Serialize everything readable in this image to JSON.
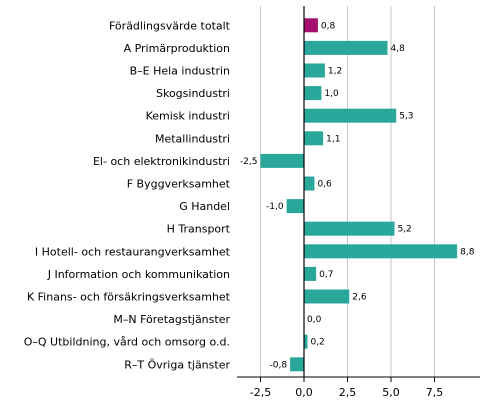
{
  "chart_data": {
    "type": "bar",
    "orientation": "horizontal",
    "title": "",
    "xlabel": "",
    "ylabel": "",
    "categories": [
      "Förädlingsvärde totalt",
      "A Primärproduktion",
      "B–E Hela industrin",
      "Skogsindustri",
      "Kemisk industri",
      "Metallindustri",
      "El- och elektronikindustri",
      "F Byggverksamhet",
      "G Handel",
      "H Transport",
      "I Hotell- och restaurangverksamhet",
      "J Information och kommunikation",
      "K Finans- och försäkringsverksamhet",
      "M–N Företagstjänster",
      "O–Q Utbildning, vård och omsorg o.d.",
      "R–T Övriga tjänster"
    ],
    "values": [
      0.8,
      4.8,
      1.2,
      1.0,
      5.3,
      1.1,
      -2.5,
      0.6,
      -1.0,
      5.2,
      8.8,
      0.7,
      2.6,
      0.0,
      0.2,
      -0.8
    ],
    "value_labels": [
      "0,8",
      "4,8",
      "1,2",
      "1,0",
      "5,3",
      "1,1",
      "-2,5",
      "0,6",
      "-1,0",
      "5,2",
      "8,8",
      "0,7",
      "2,6",
      "0,0",
      "0,2",
      "-0,8"
    ],
    "xlim": [
      -4.0,
      10.0
    ],
    "ticks": [
      -2.5,
      0.0,
      2.5,
      5.0,
      7.5
    ],
    "tick_labels": [
      "-2,5",
      "0,0",
      "2,5",
      "5,0",
      "7,5"
    ],
    "grid": "vertical",
    "colors": {
      "highlight": "#a5106e",
      "bar": "#2aa79b",
      "grid": "#c8c8c8",
      "zero_line": "#000000",
      "axis": "#000000"
    },
    "highlight_index": 0
  }
}
